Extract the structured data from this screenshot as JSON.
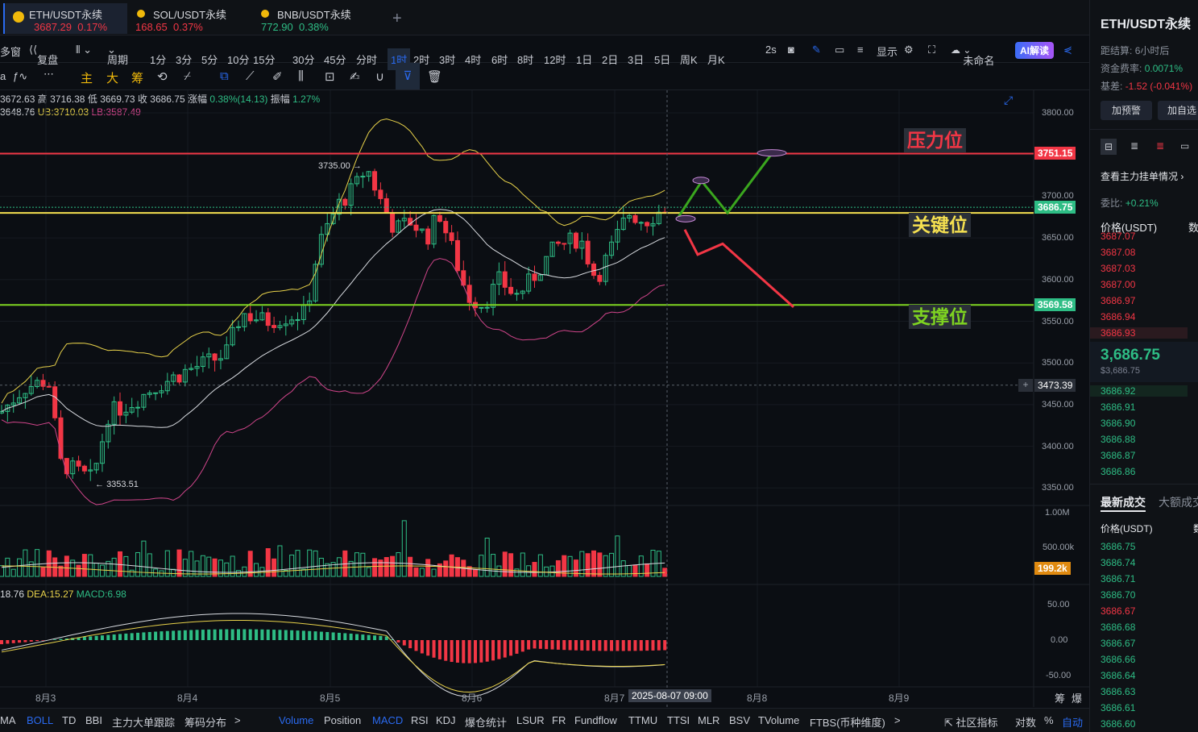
{
  "tabs": [
    {
      "name": "ETH/USDT永续",
      "price": "3687.29",
      "change": "0.17%",
      "dir": "red"
    },
    {
      "name": "SOL/USDT永续",
      "price": "168.65",
      "change": "0.37%",
      "dir": "red"
    },
    {
      "name": "BNB/USDT永续",
      "price": "772.90",
      "change": "0.38%",
      "dir": "green"
    }
  ],
  "add_tab": "+",
  "toolbar": {
    "left": [
      "多窗",
      "复盘",
      "",
      "周期"
    ],
    "intervals": [
      "1分",
      "3分",
      "5分",
      "10分",
      "15分",
      "30分",
      "45分",
      "分时",
      "1时",
      "2时",
      "3时",
      "4时",
      "6时",
      "8时",
      "12时",
      "1日",
      "2日",
      "3日",
      "5日",
      "周K",
      "月K"
    ],
    "active_interval": "1时",
    "speed": "2s",
    "display": "显示",
    "unnamed": "未命名",
    "ai": "AI解读"
  },
  "drawbar": {
    "labels": [
      "a",
      "",
      "",
      "主",
      "大",
      "筹"
    ]
  },
  "ohlc": {
    "open": "3672.63",
    "high_label": "高",
    "high": "3716.38",
    "low_label": "低",
    "low": "3669.73",
    "close_label": "收",
    "close": "3686.75",
    "chg_label": "涨幅",
    "chg": "0.38%(14.13)",
    "amp_label": "振幅",
    "amp": "1.27%"
  },
  "boll": {
    "mb": "3648.76",
    "ub": "UB:3710.03",
    "lb": "LB:3587.49"
  },
  "price_axis": [
    "3800.00",
    "3750.00",
    "3700.00",
    "3650.00",
    "3600.00",
    "3550.00",
    "3500.00",
    "3450.00",
    "3400.00",
    "3350.00"
  ],
  "price_tags": {
    "resistance": "3751.15",
    "current": "3686.75",
    "support": "3569.58",
    "crosshair": "3473.39",
    "volume": "199.2k"
  },
  "annotations": {
    "resistance": "压力位",
    "key": "关键位",
    "support": "支撑位"
  },
  "extremes": {
    "high": "3735.00",
    "low": "3353.51"
  },
  "volume_axis": [
    "1.00M",
    "500.00k"
  ],
  "macd": {
    "label": "18.76",
    "dea": "DEA:15.27",
    "macd": "MACD:6.98",
    "axis": [
      "50.00",
      "0.00",
      "-50.00"
    ]
  },
  "dates": [
    "8月3",
    "8月4",
    "8月5",
    "8月6",
    "8月7",
    "8月8",
    "8月9"
  ],
  "cursor_date": "2025-08-07 09:00",
  "corner": [
    "筹",
    "爆"
  ],
  "indicators": [
    "MA",
    "BOLL",
    "TD",
    "BBI",
    "主力大单跟踪",
    "筹码分布",
    ">",
    "Volume",
    "Position",
    "MACD",
    "RSI",
    "KDJ",
    "爆仓统计",
    "LSUR",
    "FR",
    "Fundflow",
    "TTMU",
    "TTSI",
    "MLR",
    "BSV",
    "TVolume",
    "FTBS(币种维度)",
    ">"
  ],
  "bottom_right": [
    "社区指标",
    "对数",
    "%",
    "自动"
  ],
  "sidebar": {
    "title": "ETH/USDT永续",
    "settle_label": "距结算",
    "settle": "6小时后",
    "funding_label": "资金费率:",
    "funding": "0.0071%",
    "basis_label": "基差:",
    "basis": "-1.52 (-0.041%)",
    "btn_alert": "加预警",
    "btn_watch": "加自选",
    "orderbook_link": "查看主力挂单情况",
    "ratio_label": "委比:",
    "ratio": "+0.21%",
    "price_col": "价格(USDT)",
    "qty_col": "数",
    "asks": [
      "3687.07",
      "3687.08",
      "3687.03",
      "3687.00",
      "3686.97",
      "3686.94",
      "3686.93"
    ],
    "last": "3,686.75",
    "last_sub": "$3,686.75",
    "bids": [
      "3686.92",
      "3686.91",
      "3686.90",
      "3686.88",
      "3686.87",
      "3686.86"
    ],
    "trades_tab": "最新成交",
    "big_tab": "大额成交",
    "trades_price_col": "价格(USDT)",
    "trades_qty_col": "数",
    "trades": [
      {
        "p": "3686.75",
        "d": "g"
      },
      {
        "p": "3686.74",
        "d": "g"
      },
      {
        "p": "3686.71",
        "d": "g"
      },
      {
        "p": "3686.70",
        "d": "g"
      },
      {
        "p": "3686.67",
        "d": "r"
      },
      {
        "p": "3686.68",
        "d": "g"
      },
      {
        "p": "3686.67",
        "d": "g"
      },
      {
        "p": "3686.66",
        "d": "g"
      },
      {
        "p": "3686.64",
        "d": "g"
      },
      {
        "p": "3686.63",
        "d": "g"
      },
      {
        "p": "3686.61",
        "d": "g"
      },
      {
        "p": "3686.60",
        "d": "g"
      }
    ]
  },
  "colors": {
    "up": "#2ebd85",
    "down": "#f23645",
    "boll_ub": "#e8d24a",
    "boll_mb": "#d8dbe0",
    "boll_lb": "#d0458a",
    "resistance": "#f23645",
    "key": "#f5e050",
    "support": "#7ed321",
    "accent": "#2a6af0"
  }
}
